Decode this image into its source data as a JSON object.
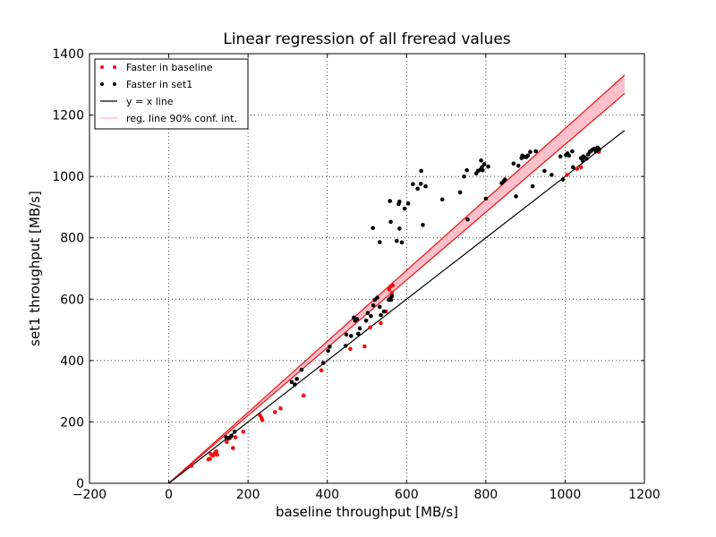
{
  "chart_data": {
    "type": "scatter",
    "title": "Linear regression of all freread values",
    "xlabel": "baseline throughput [MB/s]",
    "ylabel": "set1 throughput [MB/s]",
    "xlim": [
      -200,
      1200
    ],
    "ylim": [
      0,
      1400
    ],
    "x_ticks": [
      -200,
      0,
      200,
      400,
      600,
      800,
      1000,
      1200
    ],
    "y_ticks": [
      0,
      200,
      400,
      600,
      800,
      1000,
      1200,
      1400
    ],
    "x_tick_labels": [
      "−200",
      "0",
      "200",
      "400",
      "600",
      "800",
      "1000",
      "1200"
    ],
    "y_tick_labels": [
      "0",
      "200",
      "400",
      "600",
      "800",
      "1000",
      "1200",
      "1400"
    ],
    "grid": true,
    "legend_position": "top-left",
    "colors": {
      "baseline_faster": "#ee1111",
      "set1_faster": "#000000",
      "identity_line": "#000000",
      "regression_line": "#ee1111",
      "confidence_fill": "#ffc0cb"
    },
    "legend": [
      {
        "label": "Faster in baseline",
        "kind": "points",
        "color": "#ee1111"
      },
      {
        "label": "Faster in set1",
        "kind": "points",
        "color": "#000000"
      },
      {
        "label": "y = x line",
        "kind": "line",
        "color": "#000000"
      },
      {
        "label": "reg. line 90% conf. int.",
        "kind": "band",
        "color": "#ffc0cb"
      }
    ],
    "identity_line": {
      "x": [
        0,
        1150
      ],
      "y": [
        0,
        1150
      ]
    },
    "confidence_band": {
      "x": [
        0,
        1150
      ],
      "upper": [
        0,
        1330
      ],
      "lower": [
        0,
        1270
      ]
    },
    "series": [
      {
        "name": "Faster in baseline",
        "color": "#ee1111",
        "points": [
          [
            57,
            57
          ],
          [
            100,
            78
          ],
          [
            104,
            80
          ],
          [
            106,
            95
          ],
          [
            112,
            90
          ],
          [
            116,
            98
          ],
          [
            120,
            104
          ],
          [
            122,
            93
          ],
          [
            146,
            135
          ],
          [
            150,
            145
          ],
          [
            155,
            148
          ],
          [
            162,
            115
          ],
          [
            168,
            150
          ],
          [
            188,
            168
          ],
          [
            230,
            222
          ],
          [
            234,
            213
          ],
          [
            236,
            206
          ],
          [
            268,
            232
          ],
          [
            282,
            244
          ],
          [
            340,
            286
          ],
          [
            385,
            368
          ],
          [
            458,
            438
          ],
          [
            494,
            446
          ],
          [
            508,
            508
          ],
          [
            535,
            522
          ],
          [
            548,
            560
          ],
          [
            556,
            632
          ],
          [
            560,
            642
          ],
          [
            563,
            620
          ],
          [
            565,
            645
          ],
          [
            1005,
            1005
          ],
          [
            1030,
            1025
          ],
          [
            1040,
            1030
          ],
          [
            1085,
            1080
          ]
        ]
      },
      {
        "name": "Faster in set1",
        "color": "#000000",
        "points": [
          [
            145,
            150
          ],
          [
            152,
            148
          ],
          [
            158,
            155
          ],
          [
            166,
            168
          ],
          [
            310,
            330
          ],
          [
            318,
            322
          ],
          [
            323,
            340
          ],
          [
            335,
            370
          ],
          [
            390,
            392
          ],
          [
            402,
            432
          ],
          [
            406,
            445
          ],
          [
            446,
            448
          ],
          [
            448,
            485
          ],
          [
            460,
            480
          ],
          [
            467,
            540
          ],
          [
            470,
            530
          ],
          [
            475,
            535
          ],
          [
            478,
            487
          ],
          [
            482,
            505
          ],
          [
            498,
            530
          ],
          [
            502,
            555
          ],
          [
            510,
            545
          ],
          [
            516,
            580
          ],
          [
            520,
            598
          ],
          [
            526,
            605
          ],
          [
            532,
            575
          ],
          [
            535,
            548
          ],
          [
            543,
            560
          ],
          [
            555,
            598
          ],
          [
            558,
            602
          ],
          [
            561,
            598
          ],
          [
            563,
            610
          ],
          [
            558,
            920
          ],
          [
            560,
            852
          ],
          [
            515,
            832
          ],
          [
            532,
            786
          ],
          [
            575,
            790
          ],
          [
            580,
            910
          ],
          [
            582,
            918
          ],
          [
            582,
            830
          ],
          [
            588,
            785
          ],
          [
            595,
            895
          ],
          [
            604,
            912
          ],
          [
            616,
            975
          ],
          [
            628,
            960
          ],
          [
            636,
            976
          ],
          [
            637,
            1018
          ],
          [
            641,
            842
          ],
          [
            648,
            968
          ],
          [
            690,
            925
          ],
          [
            735,
            948
          ],
          [
            745,
            1000
          ],
          [
            752,
            1020
          ],
          [
            754,
            860
          ],
          [
            776,
            1010
          ],
          [
            780,
            1018
          ],
          [
            786,
            1022
          ],
          [
            788,
            1052
          ],
          [
            790,
            1030
          ],
          [
            792,
            1020
          ],
          [
            796,
            1040
          ],
          [
            800,
            928
          ],
          [
            806,
            1032
          ],
          [
            840,
            978
          ],
          [
            845,
            985
          ],
          [
            848,
            990
          ],
          [
            870,
            1042
          ],
          [
            876,
            935
          ],
          [
            882,
            1035
          ],
          [
            890,
            1060
          ],
          [
            892,
            1068
          ],
          [
            898,
            1064
          ],
          [
            902,
            1063
          ],
          [
            906,
            1068
          ],
          [
            912,
            1080
          ],
          [
            918,
            968
          ],
          [
            926,
            1082
          ],
          [
            948,
            1018
          ],
          [
            966,
            1005
          ],
          [
            988,
            1065
          ],
          [
            994,
            990
          ],
          [
            1002,
            1070
          ],
          [
            1006,
            1075
          ],
          [
            1010,
            1068
          ],
          [
            1018,
            1082
          ],
          [
            1020,
            1030
          ],
          [
            1040,
            1060
          ],
          [
            1044,
            1052
          ],
          [
            1046,
            1065
          ],
          [
            1050,
            1062
          ],
          [
            1054,
            1058
          ],
          [
            1058,
            1072
          ],
          [
            1062,
            1080
          ],
          [
            1066,
            1084
          ],
          [
            1070,
            1088
          ],
          [
            1074,
            1090
          ],
          [
            1078,
            1082
          ],
          [
            1082,
            1094
          ],
          [
            1086,
            1088
          ]
        ]
      }
    ]
  }
}
